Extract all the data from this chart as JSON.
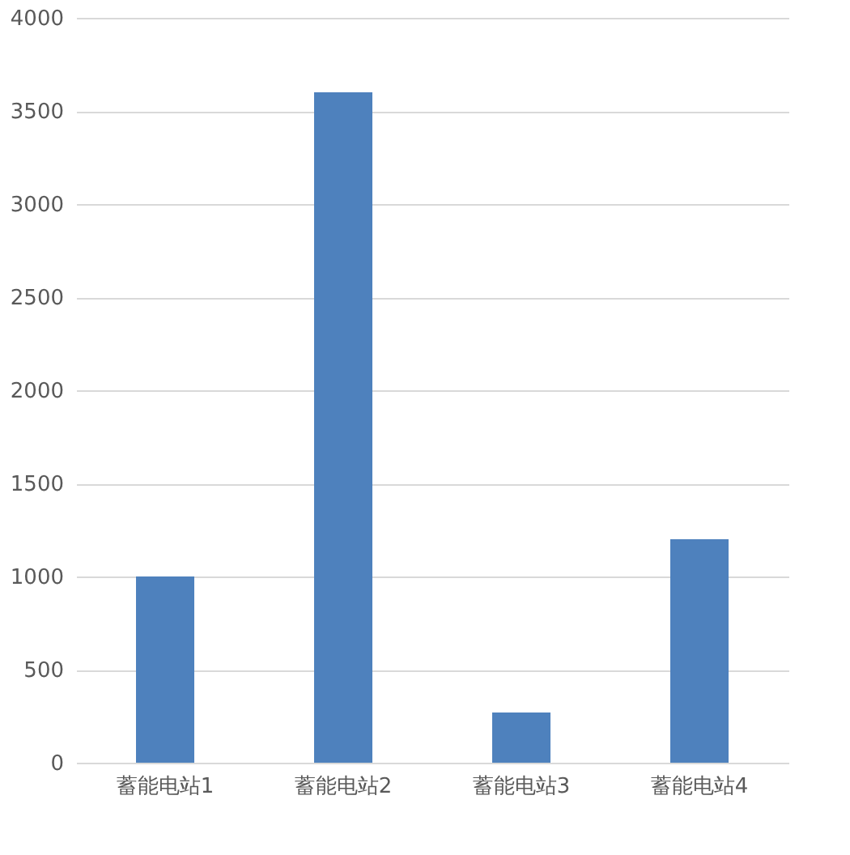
{
  "chart_data": {
    "type": "bar",
    "categories": [
      "蓄能电站1",
      "蓄能电站2",
      "蓄能电站3",
      "蓄能电站4"
    ],
    "values": [
      1000,
      3600,
      270,
      1200
    ],
    "color": "#4e81bd",
    "ylim": [
      0,
      4000
    ],
    "yticks": [
      0,
      500,
      1000,
      1500,
      2000,
      2500,
      3000,
      3500,
      4000
    ],
    "grid": "y"
  }
}
